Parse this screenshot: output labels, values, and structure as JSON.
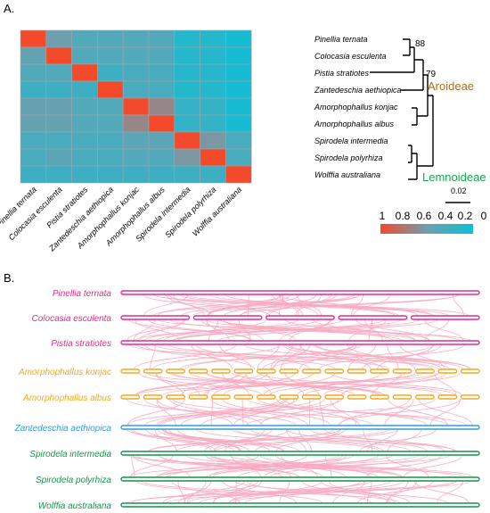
{
  "panel_a_label": "A.",
  "panel_b_label": "B.",
  "colors": {
    "high": "#f44a2c",
    "mid": "#6e9fae",
    "low": "#0ebfd6",
    "grid": "#9aa9b0",
    "tree": "#000000",
    "aroideae": "#b06a1c",
    "lemnoideae": "#14a84b",
    "pink_species": "#e8298c",
    "yellow_species": "#f2a81d",
    "blue_species": "#2a9fd8",
    "green_species": "#14944a",
    "synteny_link": "#f7a9bf"
  },
  "chart_data": [
    {
      "type": "heatmap",
      "species": [
        "Pinellia ternata",
        "Colocasia esculenta",
        "Pistia stratiotes",
        "Zantedeschia aethiopica",
        "Amorphophallus konjac",
        "Amorphophallus albus",
        "Spirodela intermedia",
        "Spirodela polyrhiza",
        "Wolffia australiana"
      ],
      "matrix": [
        [
          1.0,
          0.5,
          0.35,
          0.35,
          0.35,
          0.35,
          0.12,
          0.12,
          0.05
        ],
        [
          0.45,
          1.0,
          0.35,
          0.35,
          0.35,
          0.35,
          0.12,
          0.12,
          0.05
        ],
        [
          0.35,
          0.35,
          1.0,
          0.25,
          0.3,
          0.3,
          0.12,
          0.12,
          0.05
        ],
        [
          0.25,
          0.25,
          0.25,
          1.0,
          0.3,
          0.3,
          0.12,
          0.12,
          0.05
        ],
        [
          0.45,
          0.45,
          0.35,
          0.35,
          1.0,
          0.65,
          0.2,
          0.2,
          0.05
        ],
        [
          0.45,
          0.45,
          0.35,
          0.35,
          0.65,
          1.0,
          0.2,
          0.2,
          0.05
        ],
        [
          0.3,
          0.3,
          0.3,
          0.3,
          0.4,
          0.4,
          1.0,
          0.55,
          0.3
        ],
        [
          0.3,
          0.4,
          0.3,
          0.3,
          0.35,
          0.35,
          0.55,
          1.0,
          0.3
        ],
        [
          0.25,
          0.25,
          0.25,
          0.25,
          0.25,
          0.25,
          0.25,
          0.25,
          1.0
        ]
      ],
      "colorbar_ticks": [
        "1",
        "0.8",
        "0.6",
        "0.4",
        "0.2",
        "0"
      ],
      "color_range": [
        0,
        1
      ],
      "tree": {
        "bootstrap_labels": [
          "88",
          "79"
        ],
        "clade_labels": [
          "Aroideae",
          "Lemnoideae"
        ],
        "scale_label": "0.02"
      }
    },
    {
      "type": "synteny",
      "species": [
        {
          "name": "Pinellia ternata",
          "group": "pink",
          "chromosome_count": 1
        },
        {
          "name": "Colocasia esculenta",
          "group": "pink",
          "chromosome_count": 5
        },
        {
          "name": "Pistia stratiotes",
          "group": "pink",
          "chromosome_count": 1
        },
        {
          "name": "Amorphophallus konjac",
          "group": "yellow",
          "chromosome_count": 16
        },
        {
          "name": "Amorphophallus albus",
          "group": "yellow",
          "chromosome_count": 16
        },
        {
          "name": "Zantedeschia aethiopica",
          "group": "blue",
          "chromosome_count": 1
        },
        {
          "name": "Spirodela intermedia",
          "group": "green",
          "chromosome_count": 1
        },
        {
          "name": "Spirodela polyrhiza",
          "group": "green",
          "chromosome_count": 1
        },
        {
          "name": "Wolffia australiana",
          "group": "green",
          "chromosome_count": 1
        }
      ]
    }
  ]
}
